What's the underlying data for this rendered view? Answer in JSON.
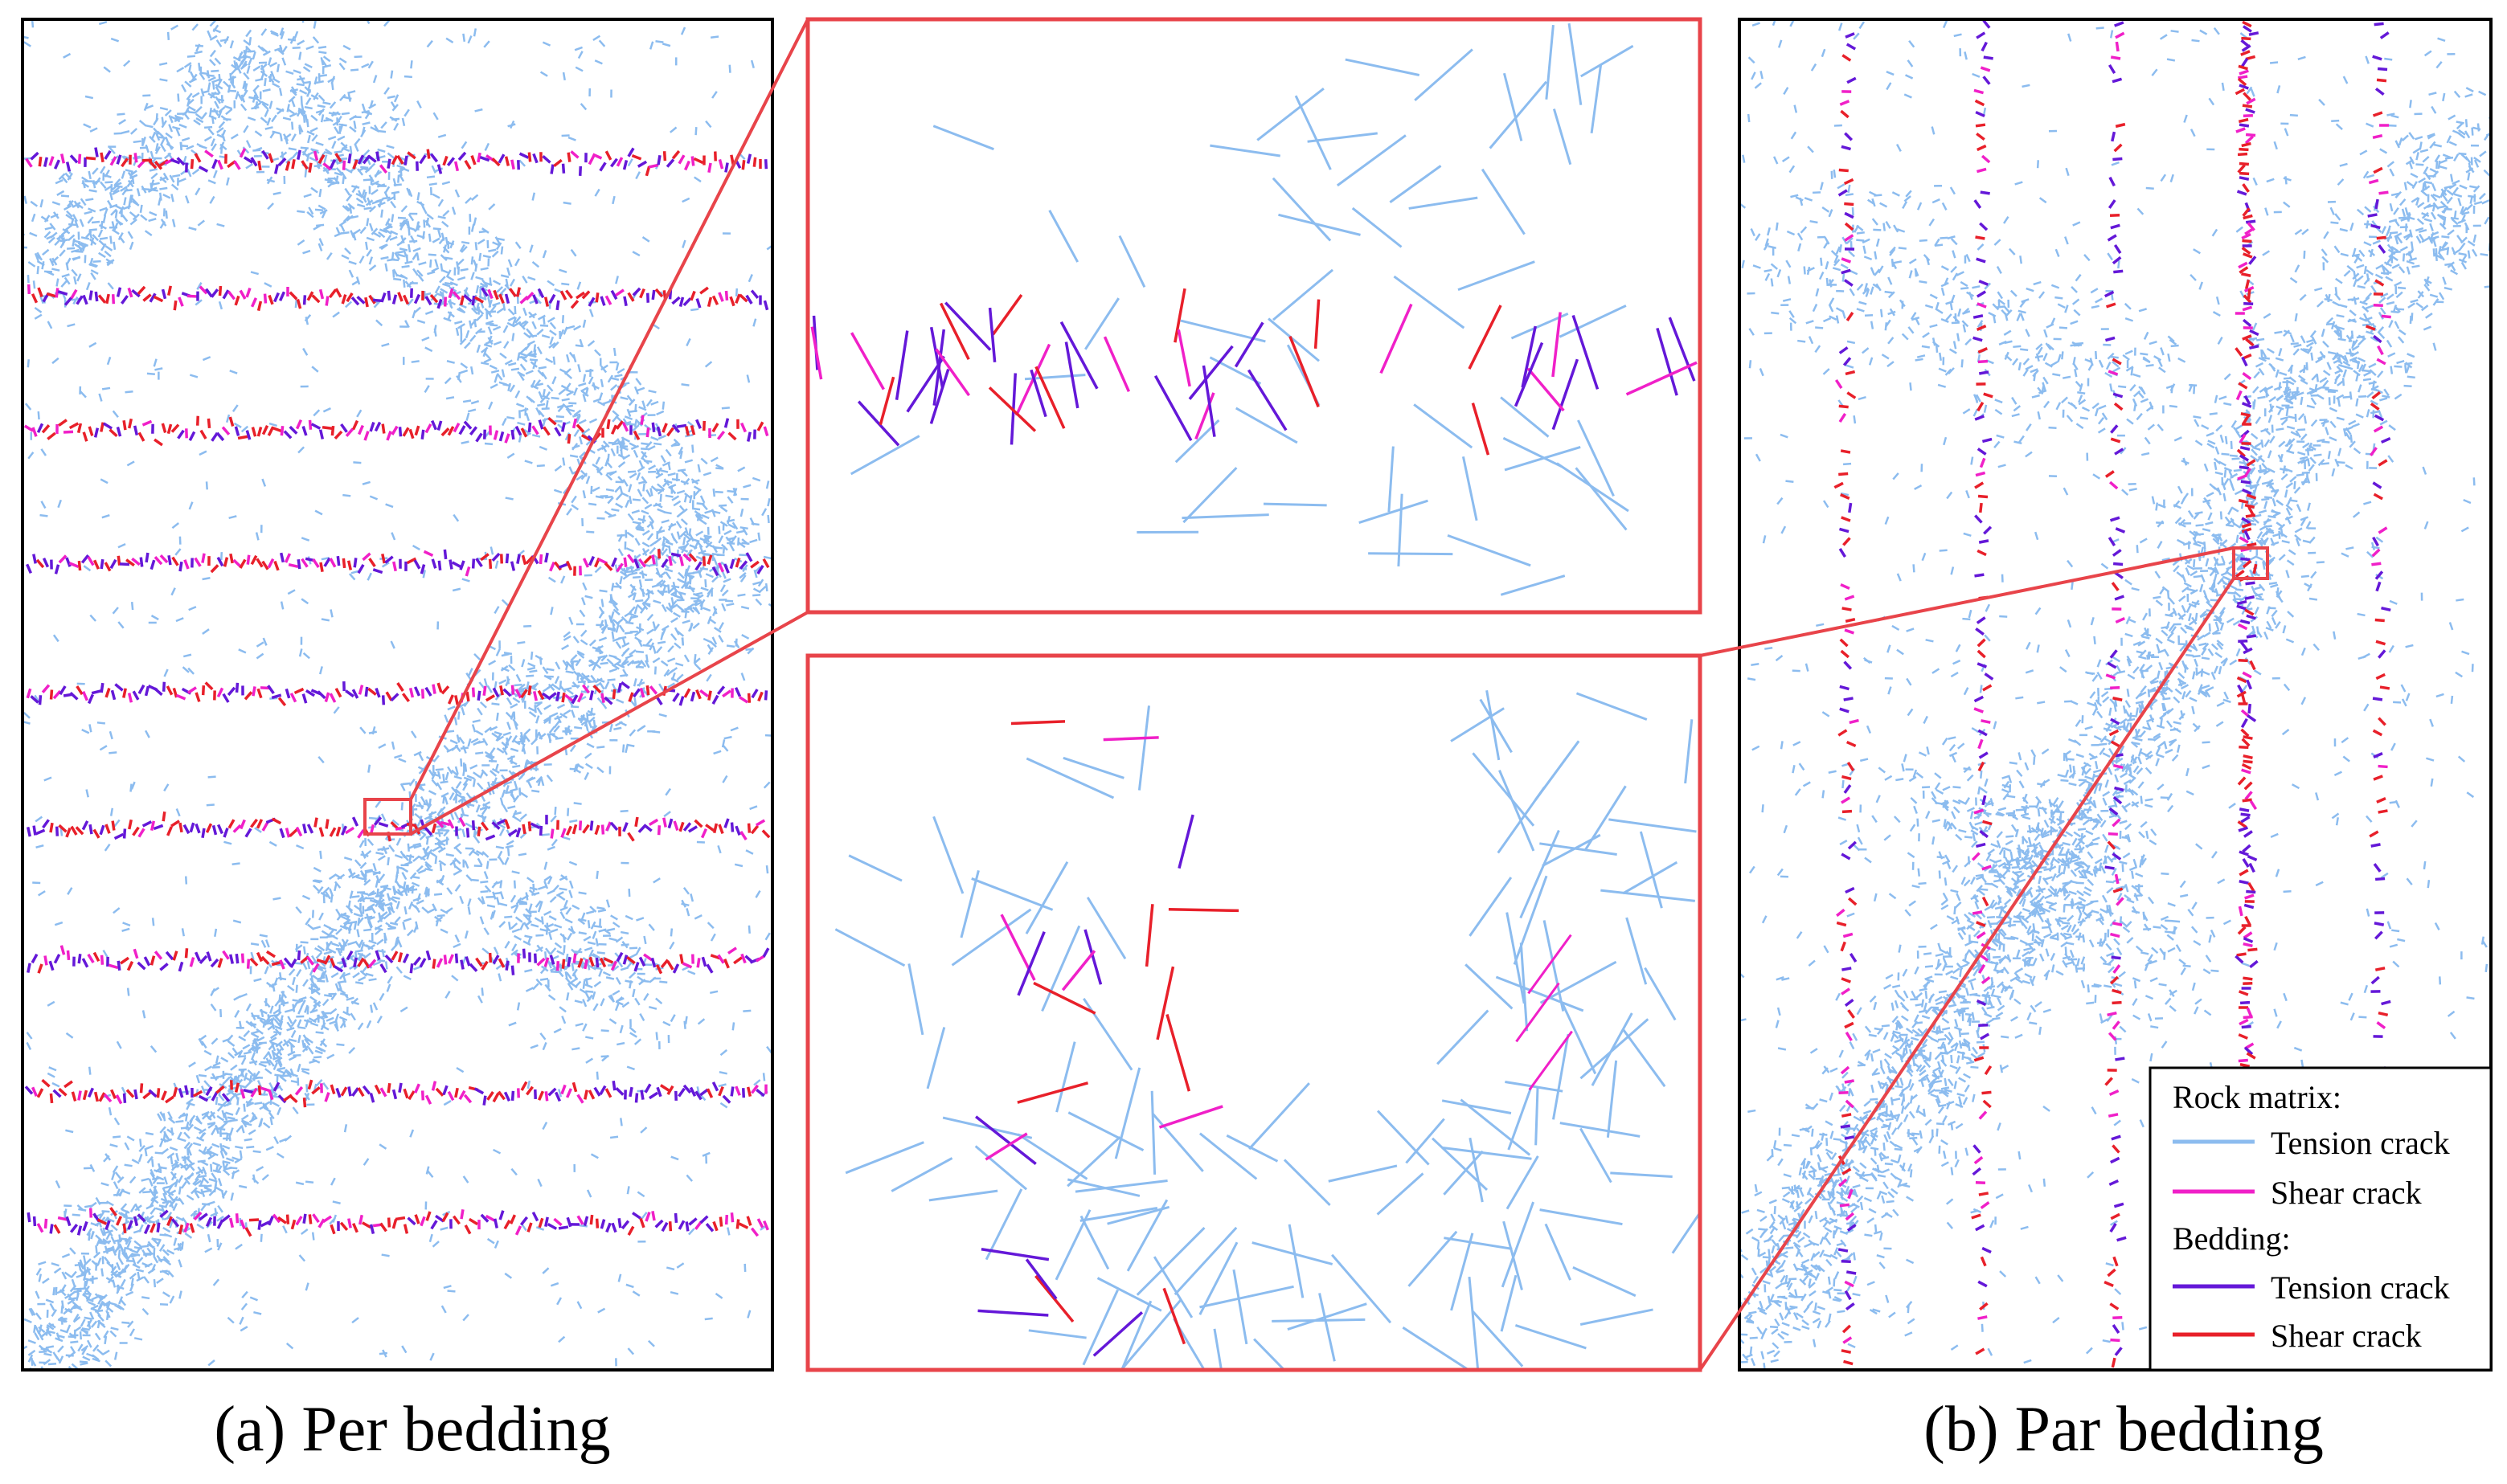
{
  "panels": [
    {
      "caption": "(a) Per bedding"
    },
    {
      "caption": "(b) Par bedding"
    }
  ],
  "legend": {
    "groups": [
      {
        "title": "Rock matrix:",
        "items": [
          {
            "label": "Tension crack",
            "color": "#8cbcef"
          },
          {
            "label": "Shear crack",
            "color": "#f020c8"
          }
        ]
      },
      {
        "title": "Bedding:",
        "items": [
          {
            "label": "Tension crack",
            "color": "#6418d8"
          },
          {
            "label": "Shear crack",
            "color": "#e8202a"
          }
        ]
      }
    ]
  }
}
